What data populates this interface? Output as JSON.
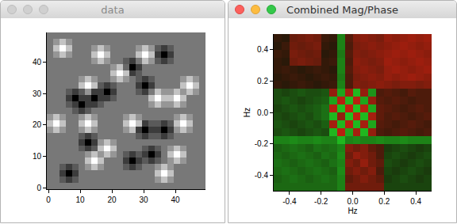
{
  "chart_data": [
    {
      "type": "heatmap",
      "title": "data",
      "grid": false,
      "colors": [
        "#000000",
        "#ffffff"
      ],
      "xlim": [
        -0.5,
        49.5
      ],
      "xticks": [
        0,
        10,
        20,
        30,
        40
      ],
      "ylim": [
        -0.5,
        49.5
      ],
      "yticks": [
        0,
        10,
        20,
        30,
        40
      ],
      "x": [
        0.5,
        2.5,
        4.5,
        6.5,
        8.5,
        10.5,
        12.5,
        14.5,
        16.5,
        18.5,
        20.5,
        22.5,
        24.5,
        26.5,
        28.5,
        30.5,
        32.5,
        34.5,
        36.5,
        38.5,
        40.5,
        42.5,
        44.5,
        46.5,
        48.5
      ],
      "y": [
        0.5,
        2.5,
        4.5,
        6.5,
        8.5,
        10.5,
        12.5,
        14.5,
        16.5,
        18.5,
        20.5,
        22.5,
        24.5,
        26.5,
        28.5,
        30.5,
        32.5,
        34.5,
        36.5,
        38.5,
        40.5,
        42.5,
        44.5,
        46.5,
        48.5
      ],
      "z": [
        [
          0.5,
          0.5,
          0.5,
          0.5,
          0.5,
          0.5,
          0.5,
          0.5,
          0.5,
          0.5,
          0.5,
          0.5,
          0.5,
          0.5,
          0.5,
          0.5,
          0.5,
          0.5,
          0.5,
          0.5,
          0.5,
          0.5,
          0.5,
          0.5,
          0.5
        ],
        [
          0.5,
          0.5,
          0.4,
          0.3,
          0.4,
          0.5,
          0.5,
          0.5,
          0.5,
          0.5,
          0.5,
          0.5,
          0.5,
          0.5,
          0.5,
          0.5,
          0.5,
          0.6,
          0.75,
          0.6,
          0.5,
          0.5,
          0.5,
          0.5,
          0.5
        ],
        [
          0.5,
          0.5,
          0.3,
          0.1,
          0.3,
          0.5,
          0.5,
          0.5,
          0.5,
          0.5,
          0.5,
          0.5,
          0.5,
          0.5,
          0.5,
          0.5,
          0.5,
          0.75,
          0.95,
          0.75,
          0.5,
          0.5,
          0.5,
          0.5,
          0.5
        ],
        [
          0.5,
          0.5,
          0.4,
          0.3,
          0.4,
          0.5,
          0.6,
          0.75,
          0.6,
          0.5,
          0.5,
          0.5,
          0.4,
          0.3,
          0.4,
          0.5,
          0.5,
          0.6,
          0.75,
          0.6,
          0.5,
          0.5,
          0.5,
          0.5,
          0.5
        ],
        [
          0.5,
          0.5,
          0.5,
          0.5,
          0.5,
          0.5,
          0.75,
          0.95,
          0.75,
          0.5,
          0.5,
          0.5,
          0.3,
          0.1,
          0.3,
          0.4,
          0.3,
          0.4,
          0.5,
          0.6,
          0.75,
          0.6,
          0.5,
          0.5,
          0.5
        ],
        [
          0.5,
          0.5,
          0.5,
          0.5,
          0.5,
          0.5,
          0.6,
          0.75,
          0.6,
          0.75,
          0.6,
          0.5,
          0.4,
          0.3,
          0.4,
          0.3,
          0.1,
          0.3,
          0.5,
          0.75,
          0.95,
          0.75,
          0.5,
          0.5,
          0.5
        ],
        [
          0.5,
          0.5,
          0.5,
          0.5,
          0.5,
          0.4,
          0.3,
          0.4,
          0.75,
          0.95,
          0.75,
          0.5,
          0.5,
          0.5,
          0.5,
          0.4,
          0.3,
          0.4,
          0.5,
          0.6,
          0.75,
          0.6,
          0.5,
          0.5,
          0.5
        ],
        [
          0.5,
          0.5,
          0.5,
          0.5,
          0.5,
          0.3,
          0.1,
          0.3,
          0.6,
          0.75,
          0.6,
          0.5,
          0.5,
          0.5,
          0.5,
          0.5,
          0.5,
          0.5,
          0.5,
          0.5,
          0.5,
          0.5,
          0.5,
          0.5,
          0.5
        ],
        [
          0.5,
          0.5,
          0.5,
          0.5,
          0.5,
          0.4,
          0.3,
          0.4,
          0.5,
          0.5,
          0.5,
          0.5,
          0.5,
          0.5,
          0.4,
          0.3,
          0.4,
          0.4,
          0.3,
          0.4,
          0.5,
          0.5,
          0.5,
          0.5,
          0.5
        ],
        [
          0.6,
          0.75,
          0.6,
          0.5,
          0.5,
          0.6,
          0.75,
          0.6,
          0.5,
          0.5,
          0.5,
          0.5,
          0.6,
          0.75,
          0.3,
          0.1,
          0.3,
          0.3,
          0.1,
          0.3,
          0.6,
          0.75,
          0.6,
          0.5,
          0.5
        ],
        [
          0.75,
          0.95,
          0.75,
          0.5,
          0.5,
          0.75,
          0.95,
          0.75,
          0.5,
          0.5,
          0.5,
          0.5,
          0.75,
          0.95,
          0.75,
          0.3,
          0.4,
          0.4,
          0.3,
          0.4,
          0.75,
          0.95,
          0.75,
          0.5,
          0.5
        ],
        [
          0.6,
          0.75,
          0.6,
          0.5,
          0.5,
          0.6,
          0.75,
          0.6,
          0.5,
          0.5,
          0.5,
          0.5,
          0.6,
          0.75,
          0.6,
          0.5,
          0.5,
          0.5,
          0.5,
          0.5,
          0.6,
          0.75,
          0.6,
          0.5,
          0.5
        ],
        [
          0.5,
          0.5,
          0.5,
          0.5,
          0.4,
          0.3,
          0.4,
          0.5,
          0.5,
          0.5,
          0.5,
          0.5,
          0.5,
          0.5,
          0.5,
          0.5,
          0.5,
          0.5,
          0.5,
          0.5,
          0.5,
          0.5,
          0.5,
          0.5,
          0.5
        ],
        [
          0.5,
          0.5,
          0.5,
          0.4,
          0.3,
          0.1,
          0.3,
          0.3,
          0.4,
          0.5,
          0.5,
          0.5,
          0.5,
          0.5,
          0.5,
          0.5,
          0.6,
          0.75,
          0.6,
          0.6,
          0.75,
          0.6,
          0.5,
          0.5,
          0.5
        ],
        [
          0.5,
          0.5,
          0.5,
          0.3,
          0.1,
          0.3,
          0.3,
          0.1,
          0.3,
          0.3,
          0.4,
          0.5,
          0.5,
          0.5,
          0.5,
          0.5,
          0.75,
          0.95,
          0.75,
          0.75,
          0.95,
          0.75,
          0.5,
          0.5,
          0.5
        ],
        [
          0.5,
          0.5,
          0.5,
          0.4,
          0.3,
          0.4,
          0.6,
          0.3,
          0.3,
          0.1,
          0.3,
          0.5,
          0.5,
          0.5,
          0.4,
          0.3,
          0.5,
          0.75,
          0.6,
          0.6,
          0.75,
          0.6,
          0.75,
          0.6,
          0.5
        ],
        [
          0.5,
          0.5,
          0.5,
          0.5,
          0.5,
          0.75,
          0.95,
          0.75,
          0.4,
          0.3,
          0.4,
          0.5,
          0.5,
          0.5,
          0.3,
          0.1,
          0.3,
          0.5,
          0.5,
          0.5,
          0.5,
          0.75,
          0.95,
          0.75,
          0.5
        ],
        [
          0.5,
          0.5,
          0.5,
          0.5,
          0.5,
          0.6,
          0.75,
          0.6,
          0.5,
          0.5,
          0.6,
          0.75,
          0.6,
          0.5,
          0.4,
          0.3,
          0.4,
          0.5,
          0.5,
          0.5,
          0.5,
          0.6,
          0.75,
          0.6,
          0.5
        ],
        [
          0.5,
          0.5,
          0.5,
          0.5,
          0.5,
          0.5,
          0.5,
          0.5,
          0.5,
          0.5,
          0.75,
          0.95,
          0.75,
          0.3,
          0.4,
          0.5,
          0.5,
          0.5,
          0.5,
          0.5,
          0.5,
          0.5,
          0.5,
          0.5,
          0.5
        ],
        [
          0.5,
          0.5,
          0.5,
          0.5,
          0.5,
          0.5,
          0.5,
          0.5,
          0.5,
          0.5,
          0.6,
          0.75,
          0.45,
          0.1,
          0.3,
          0.5,
          0.5,
          0.5,
          0.5,
          0.5,
          0.5,
          0.5,
          0.5,
          0.5,
          0.5
        ],
        [
          0.5,
          0.5,
          0.5,
          0.5,
          0.5,
          0.5,
          0.5,
          0.6,
          0.75,
          0.6,
          0.5,
          0.5,
          0.4,
          0.3,
          0.5,
          0.75,
          0.6,
          0.4,
          0.3,
          0.4,
          0.5,
          0.5,
          0.5,
          0.5,
          0.5
        ],
        [
          0.5,
          0.6,
          0.75,
          0.6,
          0.5,
          0.5,
          0.5,
          0.75,
          0.95,
          0.75,
          0.5,
          0.5,
          0.5,
          0.5,
          0.75,
          0.95,
          0.75,
          0.3,
          0.1,
          0.3,
          0.5,
          0.5,
          0.5,
          0.5,
          0.5
        ],
        [
          0.5,
          0.75,
          0.95,
          0.75,
          0.5,
          0.5,
          0.5,
          0.6,
          0.75,
          0.6,
          0.5,
          0.5,
          0.5,
          0.5,
          0.6,
          0.75,
          0.6,
          0.4,
          0.3,
          0.4,
          0.5,
          0.5,
          0.5,
          0.5,
          0.5
        ],
        [
          0.5,
          0.6,
          0.75,
          0.6,
          0.5,
          0.5,
          0.5,
          0.5,
          0.5,
          0.5,
          0.5,
          0.5,
          0.5,
          0.5,
          0.5,
          0.5,
          0.5,
          0.5,
          0.5,
          0.5,
          0.5,
          0.5,
          0.5,
          0.5,
          0.5
        ],
        [
          0.5,
          0.5,
          0.5,
          0.5,
          0.5,
          0.5,
          0.5,
          0.5,
          0.5,
          0.5,
          0.5,
          0.5,
          0.5,
          0.5,
          0.5,
          0.5,
          0.5,
          0.5,
          0.5,
          0.5,
          0.5,
          0.5,
          0.5,
          0.5,
          0.5
        ]
      ]
    },
    {
      "type": "heatmap",
      "title": "Combined Mag/Phase",
      "grid": false,
      "colors": [
        "#c02010",
        "#181808",
        "#20c020"
      ],
      "xlabel": "Hz",
      "ylabel": "Hz",
      "xlim": [
        -0.5,
        0.5
      ],
      "xticks": [
        -0.4,
        -0.2,
        {
          "value": 0,
          "label": "0.0"
        },
        0.2,
        0.4
      ],
      "ylim": [
        -0.5,
        0.5
      ],
      "yticks": [
        -0.4,
        -0.2,
        {
          "value": 0,
          "label": "0.0"
        },
        0.2,
        0.4
      ],
      "x": [
        -0.475,
        -0.425,
        -0.375,
        -0.325,
        -0.275,
        -0.225,
        -0.175,
        -0.125,
        -0.075,
        -0.025,
        0.025,
        0.075,
        0.125,
        0.175,
        0.225,
        0.275,
        0.325,
        0.375,
        0.425,
        0.475
      ],
      "y": [
        -0.475,
        -0.425,
        -0.375,
        -0.325,
        -0.275,
        -0.225,
        -0.175,
        -0.125,
        -0.075,
        -0.025,
        0.025,
        0.075,
        0.125,
        0.175,
        0.225,
        0.275,
        0.325,
        0.375,
        0.425,
        0.475
      ],
      "z": [
        [
          0.45,
          0.45,
          0.45,
          0.45,
          0.45,
          0.45,
          0.45,
          0.45,
          0.6,
          -0.5,
          -0.5,
          -0.5,
          -0.5,
          -0.5,
          0.25,
          0.25,
          0.25,
          0.25,
          0.25,
          0.25
        ],
        [
          0.4,
          0.45,
          0.5,
          0.45,
          0.4,
          0.45,
          0.5,
          0.45,
          0.6,
          -0.4,
          -0.5,
          -0.6,
          -0.5,
          -0.4,
          0.2,
          0.25,
          0.3,
          0.25,
          0.2,
          0.25
        ],
        [
          0.45,
          0.5,
          0.45,
          0.4,
          0.45,
          0.5,
          0.45,
          0.4,
          0.65,
          -0.5,
          -0.6,
          -0.5,
          -0.6,
          -0.3,
          0.25,
          0.2,
          0.25,
          0.3,
          0.25,
          0.2
        ],
        [
          0.5,
          0.45,
          0.4,
          0.45,
          0.5,
          0.45,
          0.4,
          0.5,
          0.6,
          -0.6,
          -0.5,
          -0.7,
          -0.5,
          -0.4,
          0.3,
          0.25,
          0.2,
          0.25,
          0.3,
          0.25
        ],
        [
          0.45,
          0.4,
          0.45,
          0.5,
          0.45,
          0.4,
          0.5,
          0.45,
          0.65,
          -0.5,
          -0.7,
          -0.6,
          -0.5,
          -0.3,
          0.25,
          0.3,
          0.25,
          0.2,
          0.25,
          0.3
        ],
        [
          0.4,
          0.45,
          0.5,
          0.45,
          0.4,
          0.5,
          0.45,
          0.5,
          0.6,
          -0.6,
          -0.5,
          -0.6,
          -0.4,
          -0.3,
          0.2,
          0.25,
          0.3,
          0.25,
          0.2,
          0.25
        ],
        [
          0.6,
          0.6,
          0.65,
          0.6,
          0.6,
          0.65,
          0.6,
          0.6,
          0.9,
          0.6,
          0.65,
          0.6,
          0.6,
          0.65,
          0.6,
          0.6,
          0.65,
          0.6,
          0.6,
          0.6
        ],
        [
          0.3,
          0.35,
          0.3,
          0.25,
          0.3,
          0.35,
          0.3,
          0.9,
          -0.9,
          0.8,
          -0.8,
          0.9,
          -0.7,
          -0.3,
          -0.25,
          -0.3,
          -0.35,
          -0.3,
          -0.25,
          -0.3
        ],
        [
          0.35,
          0.3,
          0.25,
          0.3,
          0.35,
          0.3,
          0.4,
          -0.8,
          0.9,
          -0.9,
          0.9,
          -0.8,
          0.8,
          -0.35,
          -0.3,
          -0.25,
          -0.3,
          -0.35,
          -0.3,
          -0.25
        ],
        [
          0.3,
          0.25,
          0.3,
          0.35,
          0.3,
          0.4,
          0.5,
          0.9,
          -0.7,
          0.95,
          -0.95,
          0.9,
          -0.8,
          -0.4,
          -0.3,
          -0.35,
          -0.3,
          -0.25,
          -0.3,
          -0.35
        ],
        [
          0.25,
          0.3,
          0.35,
          0.3,
          0.35,
          0.4,
          0.5,
          -0.9,
          0.95,
          -0.95,
          0.95,
          -0.9,
          0.8,
          -0.4,
          -0.35,
          -0.3,
          -0.25,
          -0.3,
          -0.35,
          -0.3
        ],
        [
          0.3,
          0.35,
          0.3,
          0.25,
          0.3,
          0.35,
          0.4,
          0.8,
          -0.9,
          0.9,
          -0.9,
          0.8,
          -0.7,
          -0.35,
          -0.3,
          -0.35,
          -0.3,
          -0.25,
          -0.3,
          -0.3
        ],
        [
          0.3,
          0.25,
          0.3,
          0.35,
          0.3,
          0.3,
          0.35,
          -0.7,
          0.8,
          -0.8,
          0.9,
          -0.7,
          0.7,
          -0.3,
          -0.35,
          -0.3,
          -0.25,
          -0.35,
          -0.3,
          -0.3
        ],
        [
          -0.15,
          -0.1,
          -0.15,
          -0.2,
          -0.15,
          -0.1,
          -0.15,
          -0.2,
          0.6,
          -0.3,
          -0.6,
          -0.55,
          -0.6,
          -0.65,
          -0.6,
          -0.55,
          -0.6,
          -0.6,
          -0.55,
          -0.6
        ],
        [
          -0.1,
          -0.15,
          -0.2,
          -0.15,
          -0.1,
          -0.15,
          -0.2,
          -0.15,
          0.55,
          -0.3,
          -0.55,
          -0.6,
          -0.65,
          -0.6,
          -0.7,
          -0.65,
          -0.7,
          -0.75,
          -0.7,
          -0.65
        ],
        [
          -0.15,
          -0.2,
          -0.15,
          -0.1,
          -0.15,
          -0.2,
          -0.15,
          -0.1,
          0.6,
          -0.35,
          -0.6,
          -0.65,
          -0.6,
          -0.55,
          -0.7,
          -0.75,
          -0.7,
          -0.65,
          -0.7,
          -0.75
        ],
        [
          -0.15,
          -0.1,
          -0.5,
          -0.55,
          -0.5,
          -0.45,
          -0.15,
          -0.2,
          0.6,
          -0.3,
          -0.65,
          -0.6,
          -0.55,
          -0.6,
          -0.75,
          -0.7,
          -0.65,
          -0.7,
          -0.75,
          -0.7
        ],
        [
          -0.2,
          -0.15,
          -0.55,
          -0.5,
          -0.45,
          -0.5,
          -0.1,
          -0.15,
          0.55,
          -0.35,
          -0.6,
          -0.55,
          -0.6,
          -0.65,
          -0.7,
          -0.75,
          -0.7,
          -0.75,
          -0.7,
          -0.65
        ],
        [
          -0.1,
          -0.2,
          -0.5,
          -0.45,
          -0.5,
          -0.55,
          -0.15,
          -0.1,
          0.6,
          -0.3,
          -0.55,
          -0.6,
          -0.65,
          -0.6,
          -0.65,
          -0.7,
          -0.75,
          -0.7,
          -0.65,
          -0.7
        ],
        [
          -0.15,
          -0.1,
          -0.45,
          -0.5,
          -0.55,
          -0.5,
          -0.2,
          -0.15,
          0.6,
          -0.35,
          -0.6,
          -0.65,
          -0.6,
          -0.55,
          -0.7,
          -0.65,
          -0.7,
          -0.75,
          -0.7,
          -0.75
        ]
      ]
    }
  ]
}
